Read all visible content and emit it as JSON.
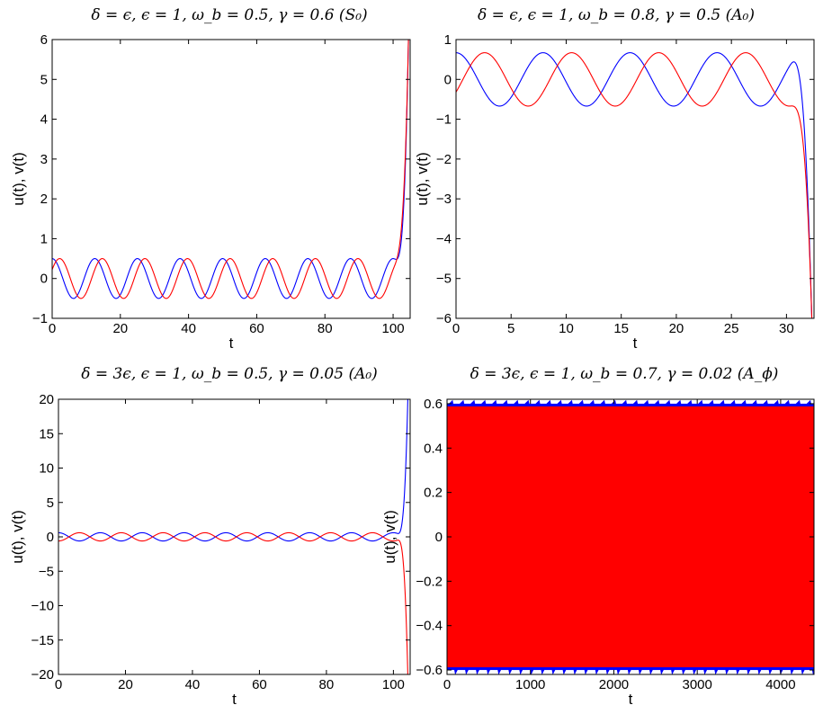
{
  "colors": {
    "u": "#0000ff",
    "v": "#ff0000",
    "axes": "#000000"
  },
  "chart_data": [
    {
      "type": "line",
      "title": "δ = ϵ, ϵ = 1, ω_b = 0.5, γ = 0.6 (S₀)",
      "xlabel": "t",
      "ylabel": "u(t), v(t)",
      "xlim": [
        0,
        105
      ],
      "ylim": [
        -1,
        6
      ],
      "xticks": [
        "0",
        "20",
        "40",
        "60",
        "80",
        "100"
      ],
      "xtick_values": [
        0,
        20,
        40,
        60,
        80,
        100
      ],
      "yticks": [
        "−1",
        "0",
        "1",
        "2",
        "3",
        "4",
        "5",
        "6"
      ],
      "ytick_values": [
        -1,
        0,
        1,
        2,
        3,
        4,
        5,
        6
      ],
      "grid": false,
      "series": [
        {
          "color": "blue",
          "behavior": "oscillating then blow-up",
          "amplitude": 0.5,
          "period": 12.5,
          "phase_shift": 0,
          "diverge_start": 100,
          "diverge_end": 104.5,
          "end_value": 6
        },
        {
          "color": "red",
          "behavior": "oscillating then blow-up",
          "amplitude": 0.5,
          "period": 12.5,
          "phase_shift": 2.2,
          "diverge_start": 100,
          "diverge_end": 104.5,
          "end_value": 6
        }
      ]
    },
    {
      "type": "line",
      "title": "δ = ϵ, ϵ = 1, ω_b = 0.8, γ = 0.5 (A₀)",
      "xlabel": "t",
      "ylabel": "u(t), v(t)",
      "xlim": [
        0,
        32.5
      ],
      "ylim": [
        -6,
        1
      ],
      "xticks": [
        "0",
        "5",
        "10",
        "15",
        "20",
        "25",
        "30"
      ],
      "xtick_values": [
        0,
        5,
        10,
        15,
        20,
        25,
        30
      ],
      "yticks": [
        "−6",
        "−5",
        "−4",
        "−3",
        "−2",
        "−1",
        "0",
        "1"
      ],
      "ytick_values": [
        -6,
        -5,
        -4,
        -3,
        -2,
        -1,
        0,
        1
      ],
      "grid": false,
      "series": [
        {
          "color": "blue",
          "behavior": "oscillating then blow-down",
          "amplitude": 0.67,
          "period": 7.9,
          "phase_shift": 0,
          "diverge_start": 30.2,
          "diverge_end": 32.3,
          "end_value": -6
        },
        {
          "color": "red",
          "behavior": "oscillating then blow-down",
          "amplitude": 0.67,
          "period": 7.9,
          "phase_shift": 2.6,
          "diverge_start": 30.2,
          "diverge_end": 32.3,
          "end_value": -6
        }
      ]
    },
    {
      "type": "line",
      "title": "δ = 3ϵ, ϵ = 1, ω_b = 0.5, γ = 0.05 (A₀)",
      "xlabel": "t",
      "ylabel": "u(t), v(t)",
      "xlim": [
        0,
        105
      ],
      "ylim": [
        -20,
        20
      ],
      "xticks": [
        "0",
        "20",
        "40",
        "60",
        "80",
        "100"
      ],
      "xtick_values": [
        0,
        20,
        40,
        60,
        80,
        100
      ],
      "yticks": [
        "−20",
        "−15",
        "−10",
        "−5",
        "0",
        "5",
        "10",
        "15",
        "20"
      ],
      "ytick_values": [
        -20,
        -15,
        -10,
        -5,
        0,
        5,
        10,
        15,
        20
      ],
      "grid": false,
      "series": [
        {
          "color": "blue",
          "behavior": "anti-phase oscillation then blow-up",
          "amplitude": 0.6,
          "period": 12.5,
          "phase_shift": 0,
          "diverge_start": 101,
          "diverge_end": 104.3,
          "end_value": 20
        },
        {
          "color": "red",
          "behavior": "anti-phase oscillation then blow-down",
          "amplitude": 0.6,
          "period": 12.5,
          "phase_shift": 6.25,
          "diverge_start": 101,
          "diverge_end": 104.3,
          "end_value": -20
        }
      ]
    },
    {
      "type": "line",
      "title": "δ = 3ϵ, ϵ = 1, ω_b = 0.7, γ = 0.02 (A_ϕ)",
      "xlabel": "t",
      "ylabel": "u(t), v(t)",
      "xlim": [
        0,
        4400
      ],
      "ylim": [
        -0.62,
        0.62
      ],
      "xticks": [
        "0",
        "1000",
        "2000",
        "3000",
        "4000"
      ],
      "xtick_values": [
        0,
        1000,
        2000,
        3000,
        4000
      ],
      "yticks": [
        "−0.6",
        "−0.4",
        "−0.2",
        "0",
        "0.2",
        "0.4",
        "0.6"
      ],
      "ytick_values": [
        -0.6,
        -0.4,
        -0.2,
        0,
        0.2,
        0.4,
        0.6
      ],
      "grid": false,
      "series": [
        {
          "color": "blue",
          "behavior": "dense fast oscillation, amplitude 0.6",
          "amplitude": 0.6
        },
        {
          "color": "red",
          "behavior": "dense fast oscillation, amplitude 0.6",
          "amplitude": 0.6
        }
      ]
    }
  ]
}
